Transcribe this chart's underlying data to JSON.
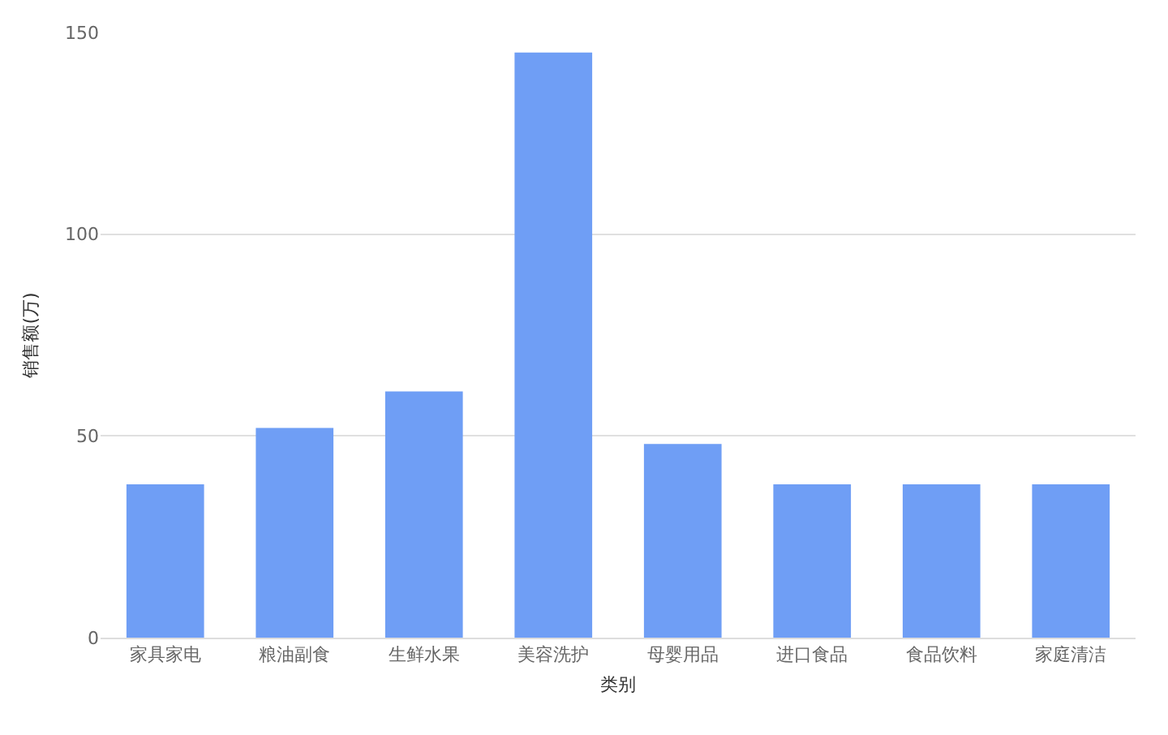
{
  "chart_data": {
    "type": "bar",
    "xlabel": "类别",
    "ylabel": "销售额(万)",
    "categories": [
      "家具家电",
      "粮油副食",
      "生鲜水果",
      "美容洗护",
      "母婴用品",
      "进口食品",
      "食品饮料",
      "家庭清洁"
    ],
    "values": [
      38,
      52,
      61,
      145,
      48,
      38,
      38,
      38
    ],
    "color": "#6f9ef5",
    "ylim": [
      0,
      150
    ],
    "yticks": [
      0,
      50,
      100,
      150
    ],
    "grid": "y",
    "legend": false
  }
}
